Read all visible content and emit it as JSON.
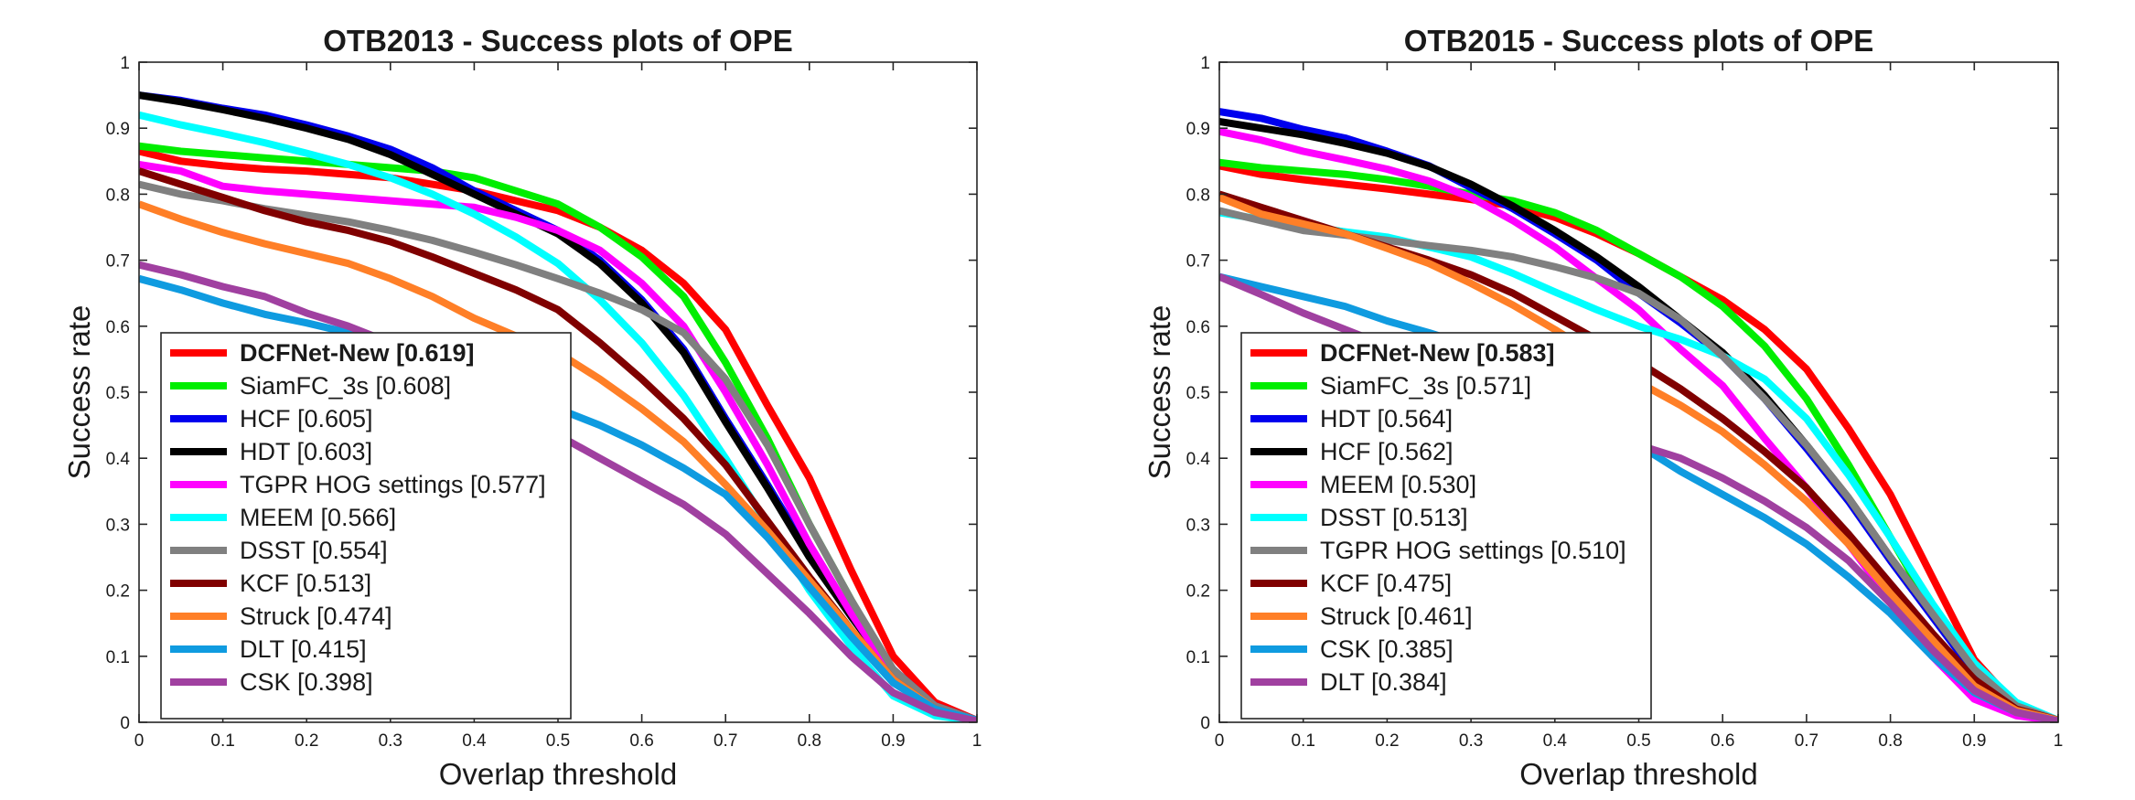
{
  "chart_data": [
    {
      "type": "line",
      "title": "OTB2013 - Success plots of OPE",
      "xlabel": "Overlap threshold",
      "ylabel": "Success rate",
      "xlim": [
        0,
        1
      ],
      "ylim": [
        0,
        1
      ],
      "xticks": [
        "0",
        "0.1",
        "0.2",
        "0.3",
        "0.4",
        "0.5",
        "0.6",
        "0.7",
        "0.8",
        "0.9",
        "1"
      ],
      "yticks": [
        "0",
        "0.1",
        "0.2",
        "0.3",
        "0.4",
        "0.5",
        "0.6",
        "0.7",
        "0.8",
        "0.9",
        "1"
      ],
      "grid": false,
      "legend_position": "bottom-left",
      "x": [
        0,
        0.05,
        0.1,
        0.15,
        0.2,
        0.25,
        0.3,
        0.35,
        0.4,
        0.45,
        0.5,
        0.55,
        0.6,
        0.65,
        0.7,
        0.75,
        0.8,
        0.85,
        0.9,
        0.95,
        1
      ],
      "series": [
        {
          "name": "DCFNet-New [0.619]",
          "color": "#ff0000",
          "bold": true,
          "values": [
            0.865,
            0.85,
            0.843,
            0.838,
            0.835,
            0.83,
            0.825,
            0.815,
            0.805,
            0.79,
            0.775,
            0.75,
            0.715,
            0.665,
            0.595,
            0.48,
            0.37,
            0.23,
            0.1,
            0.03,
            0.003
          ]
        },
        {
          "name": "SiamFC_3s [0.608]",
          "color": "#00ee00",
          "values": [
            0.873,
            0.865,
            0.86,
            0.855,
            0.85,
            0.845,
            0.84,
            0.835,
            0.825,
            0.805,
            0.785,
            0.75,
            0.705,
            0.645,
            0.545,
            0.43,
            0.3,
            0.185,
            0.075,
            0.02,
            0.003
          ]
        },
        {
          "name": "HCF [0.605]",
          "color": "#0000ee",
          "values": [
            0.95,
            0.942,
            0.93,
            0.92,
            0.905,
            0.888,
            0.868,
            0.84,
            0.805,
            0.775,
            0.745,
            0.7,
            0.64,
            0.565,
            0.46,
            0.36,
            0.255,
            0.165,
            0.08,
            0.025,
            0.003
          ]
        },
        {
          "name": "HDT [0.603]",
          "color": "#000000",
          "values": [
            0.95,
            0.94,
            0.928,
            0.915,
            0.9,
            0.883,
            0.86,
            0.83,
            0.8,
            0.77,
            0.74,
            0.695,
            0.635,
            0.56,
            0.455,
            0.355,
            0.25,
            0.16,
            0.075,
            0.023,
            0.003
          ]
        },
        {
          "name": "TGPR HOG settings [0.577]",
          "color": "#ff00ff",
          "values": [
            0.845,
            0.835,
            0.812,
            0.805,
            0.8,
            0.795,
            0.79,
            0.785,
            0.78,
            0.765,
            0.745,
            0.715,
            0.665,
            0.6,
            0.5,
            0.39,
            0.27,
            0.165,
            0.07,
            0.02,
            0.003
          ]
        },
        {
          "name": "MEEM [0.566]",
          "color": "#00ffff",
          "values": [
            0.92,
            0.905,
            0.892,
            0.878,
            0.862,
            0.845,
            0.825,
            0.8,
            0.77,
            0.735,
            0.695,
            0.64,
            0.575,
            0.495,
            0.4,
            0.3,
            0.2,
            0.115,
            0.04,
            0.01,
            0.002
          ]
        },
        {
          "name": "DSST [0.554]",
          "color": "#808080",
          "values": [
            0.815,
            0.8,
            0.79,
            0.778,
            0.768,
            0.758,
            0.745,
            0.73,
            0.712,
            0.693,
            0.672,
            0.65,
            0.625,
            0.59,
            0.52,
            0.42,
            0.3,
            0.185,
            0.08,
            0.025,
            0.003
          ]
        },
        {
          "name": "KCF [0.513]",
          "color": "#800000",
          "values": [
            0.835,
            0.815,
            0.795,
            0.775,
            0.758,
            0.745,
            0.728,
            0.705,
            0.68,
            0.655,
            0.625,
            0.575,
            0.52,
            0.46,
            0.39,
            0.305,
            0.22,
            0.14,
            0.065,
            0.02,
            0.003
          ]
        },
        {
          "name": "Struck [0.474]",
          "color": "#ff7f27",
          "values": [
            0.785,
            0.762,
            0.742,
            0.725,
            0.71,
            0.695,
            0.672,
            0.645,
            0.612,
            0.585,
            0.56,
            0.52,
            0.475,
            0.425,
            0.36,
            0.29,
            0.215,
            0.14,
            0.065,
            0.02,
            0.003
          ]
        },
        {
          "name": "DLT [0.415]",
          "color": "#0f9be0",
          "values": [
            0.672,
            0.655,
            0.635,
            0.618,
            0.605,
            0.59,
            0.575,
            0.555,
            0.525,
            0.5,
            0.475,
            0.45,
            0.42,
            0.385,
            0.345,
            0.28,
            0.205,
            0.13,
            0.06,
            0.02,
            0.003
          ]
        },
        {
          "name": "CSK [0.398]",
          "color": "#a040a0",
          "values": [
            0.693,
            0.678,
            0.66,
            0.645,
            0.62,
            0.6,
            0.575,
            0.545,
            0.505,
            0.468,
            0.435,
            0.4,
            0.365,
            0.33,
            0.285,
            0.225,
            0.165,
            0.1,
            0.045,
            0.015,
            0.002
          ]
        }
      ]
    },
    {
      "type": "line",
      "title": "OTB2015 - Success plots of OPE",
      "xlabel": "Overlap threshold",
      "ylabel": "Success rate",
      "xlim": [
        0,
        1
      ],
      "ylim": [
        0,
        1
      ],
      "xticks": [
        "0",
        "0.1",
        "0.2",
        "0.3",
        "0.4",
        "0.5",
        "0.6",
        "0.7",
        "0.8",
        "0.9",
        "1"
      ],
      "yticks": [
        "0",
        "0.1",
        "0.2",
        "0.3",
        "0.4",
        "0.5",
        "0.6",
        "0.7",
        "0.8",
        "0.9",
        "1"
      ],
      "grid": false,
      "legend_position": "bottom-left",
      "x": [
        0,
        0.05,
        0.1,
        0.15,
        0.2,
        0.25,
        0.3,
        0.35,
        0.4,
        0.45,
        0.5,
        0.55,
        0.6,
        0.65,
        0.7,
        0.75,
        0.8,
        0.85,
        0.9,
        0.95,
        1
      ],
      "series": [
        {
          "name": "DCFNet-New [0.583]",
          "color": "#ff0000",
          "bold": true,
          "values": [
            0.843,
            0.83,
            0.822,
            0.815,
            0.808,
            0.8,
            0.792,
            0.782,
            0.765,
            0.74,
            0.71,
            0.675,
            0.64,
            0.595,
            0.535,
            0.445,
            0.345,
            0.22,
            0.095,
            0.025,
            0.003
          ]
        },
        {
          "name": "SiamFC_3s [0.571]",
          "color": "#00ee00",
          "values": [
            0.848,
            0.84,
            0.835,
            0.83,
            0.822,
            0.812,
            0.8,
            0.79,
            0.772,
            0.745,
            0.71,
            0.675,
            0.63,
            0.57,
            0.49,
            0.39,
            0.28,
            0.17,
            0.07,
            0.02,
            0.003
          ]
        },
        {
          "name": "HDT [0.564]",
          "color": "#0000ee",
          "values": [
            0.925,
            0.915,
            0.898,
            0.885,
            0.865,
            0.843,
            0.81,
            0.778,
            0.74,
            0.7,
            0.65,
            0.605,
            0.555,
            0.49,
            0.415,
            0.335,
            0.245,
            0.16,
            0.075,
            0.025,
            0.003
          ]
        },
        {
          "name": "HCF [0.562]",
          "color": "#000000",
          "values": [
            0.91,
            0.9,
            0.89,
            0.877,
            0.862,
            0.842,
            0.815,
            0.782,
            0.745,
            0.705,
            0.66,
            0.61,
            0.56,
            0.495,
            0.42,
            0.34,
            0.25,
            0.165,
            0.08,
            0.025,
            0.003
          ]
        },
        {
          "name": "MEEM [0.530]",
          "color": "#ff00ff",
          "values": [
            0.895,
            0.882,
            0.865,
            0.852,
            0.838,
            0.82,
            0.795,
            0.76,
            0.72,
            0.672,
            0.625,
            0.565,
            0.51,
            0.43,
            0.355,
            0.27,
            0.185,
            0.1,
            0.035,
            0.01,
            0.002
          ]
        },
        {
          "name": "DSST [0.513]",
          "color": "#00ffff",
          "values": [
            0.772,
            0.762,
            0.752,
            0.743,
            0.735,
            0.72,
            0.705,
            0.68,
            0.652,
            0.625,
            0.6,
            0.58,
            0.555,
            0.52,
            0.46,
            0.375,
            0.28,
            0.18,
            0.09,
            0.03,
            0.003
          ]
        },
        {
          "name": "TGPR HOG settings [0.510]",
          "color": "#808080",
          "values": [
            0.775,
            0.76,
            0.745,
            0.738,
            0.73,
            0.722,
            0.715,
            0.705,
            0.69,
            0.673,
            0.65,
            0.61,
            0.555,
            0.49,
            0.42,
            0.34,
            0.25,
            0.165,
            0.08,
            0.025,
            0.003
          ]
        },
        {
          "name": "KCF [0.475]",
          "color": "#800000",
          "values": [
            0.8,
            0.78,
            0.76,
            0.74,
            0.72,
            0.7,
            0.678,
            0.65,
            0.615,
            0.58,
            0.545,
            0.505,
            0.46,
            0.41,
            0.355,
            0.285,
            0.21,
            0.135,
            0.065,
            0.02,
            0.003
          ]
        },
        {
          "name": "Struck [0.461]",
          "color": "#ff7f27",
          "values": [
            0.795,
            0.77,
            0.755,
            0.74,
            0.718,
            0.695,
            0.665,
            0.632,
            0.595,
            0.555,
            0.515,
            0.48,
            0.44,
            0.39,
            0.335,
            0.27,
            0.195,
            0.125,
            0.055,
            0.018,
            0.003
          ]
        },
        {
          "name": "CSK [0.385]",
          "color": "#0f9be0",
          "values": [
            0.675,
            0.66,
            0.645,
            0.63,
            0.608,
            0.59,
            0.57,
            0.545,
            0.505,
            0.46,
            0.42,
            0.38,
            0.345,
            0.31,
            0.27,
            0.22,
            0.165,
            0.1,
            0.045,
            0.015,
            0.002
          ]
        },
        {
          "name": "DLT [0.384]",
          "color": "#a040a0",
          "values": [
            0.675,
            0.648,
            0.62,
            0.595,
            0.57,
            0.548,
            0.525,
            0.5,
            0.47,
            0.44,
            0.42,
            0.4,
            0.37,
            0.335,
            0.295,
            0.245,
            0.18,
            0.11,
            0.048,
            0.015,
            0.002
          ]
        }
      ]
    }
  ]
}
